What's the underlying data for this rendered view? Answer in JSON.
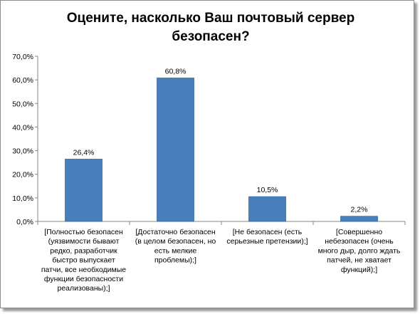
{
  "chart_data": {
    "type": "bar",
    "title_lines": [
      "Оцените, насколько Ваш почтовый сервер",
      "безопасен?"
    ],
    "categories": [
      [
        "[Полностью безопасен",
        "(уязвимости бывают",
        "редко, разработчик",
        "быстро выпускает",
        "патчи, все необходимые",
        "функции безопасности",
        "реализованы);]"
      ],
      [
        "[Достаточно безопасен",
        "(в целом безопасен, но",
        "есть мелкие",
        "проблемы);]"
      ],
      [
        "[Не безопасен (есть",
        "серьезные претензии);]"
      ],
      [
        "[Совершенно",
        "небезопасен (очень",
        "много дыр, долго ждать",
        "патчей, не хватает",
        "функций);]"
      ]
    ],
    "values": [
      26.4,
      60.8,
      10.5,
      2.2
    ],
    "data_labels": [
      "26,4%",
      "60,8%",
      "10,5%",
      "2,2%"
    ],
    "ylim": [
      0,
      70
    ],
    "yticks": [
      {
        "value": 0,
        "label": "0,0%"
      },
      {
        "value": 10,
        "label": "10,0%"
      },
      {
        "value": 20,
        "label": "20,0%"
      },
      {
        "value": 30,
        "label": "30,0%"
      },
      {
        "value": 40,
        "label": "40,0%"
      },
      {
        "value": 50,
        "label": "50,0%"
      },
      {
        "value": 60,
        "label": "60,0%"
      },
      {
        "value": 70,
        "label": "70,0%"
      }
    ],
    "grid": false,
    "legend": "none",
    "bar_color": "#4a7ebb",
    "bar_edge_color": "#3a6aa6"
  }
}
